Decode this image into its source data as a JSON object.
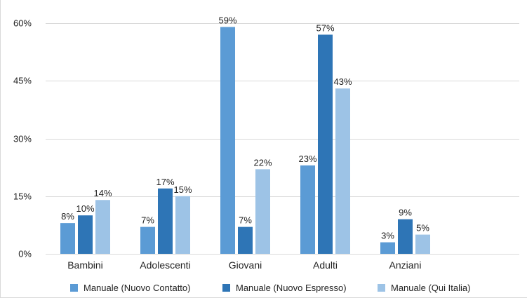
{
  "chart_data": {
    "type": "bar",
    "categories": [
      "Bambini",
      "Adolescenti",
      "Giovani",
      "Adulti",
      "Anziani"
    ],
    "series": [
      {
        "name": "Manuale (Nuovo Contatto)",
        "values": [
          8,
          7,
          59,
          23,
          3
        ],
        "labels": [
          "8%",
          "7%",
          "59%",
          "23%",
          "3%"
        ],
        "color": "#5b9bd5"
      },
      {
        "name": "Manuale (Nuovo Espresso)",
        "values": [
          10,
          17,
          7,
          57,
          9
        ],
        "labels": [
          "10%",
          "17%",
          "7%",
          "57%",
          "9%"
        ],
        "color": "#2e75b6"
      },
      {
        "name": "Manuale (Qui Italia)",
        "values": [
          14,
          15,
          22,
          43,
          5
        ],
        "labels": [
          "14%",
          "15%",
          "22%",
          "43%",
          "5%"
        ],
        "color": "#9dc3e6"
      }
    ],
    "yticks": [
      0,
      15,
      30,
      45,
      60
    ],
    "ytick_labels": [
      "0%",
      "15%",
      "30%",
      "45%",
      "60%"
    ],
    "ylim": [
      0,
      60
    ],
    "grid": "horizontal",
    "legend_position": "bottom",
    "title": "",
    "xlabel": "",
    "ylabel": ""
  }
}
